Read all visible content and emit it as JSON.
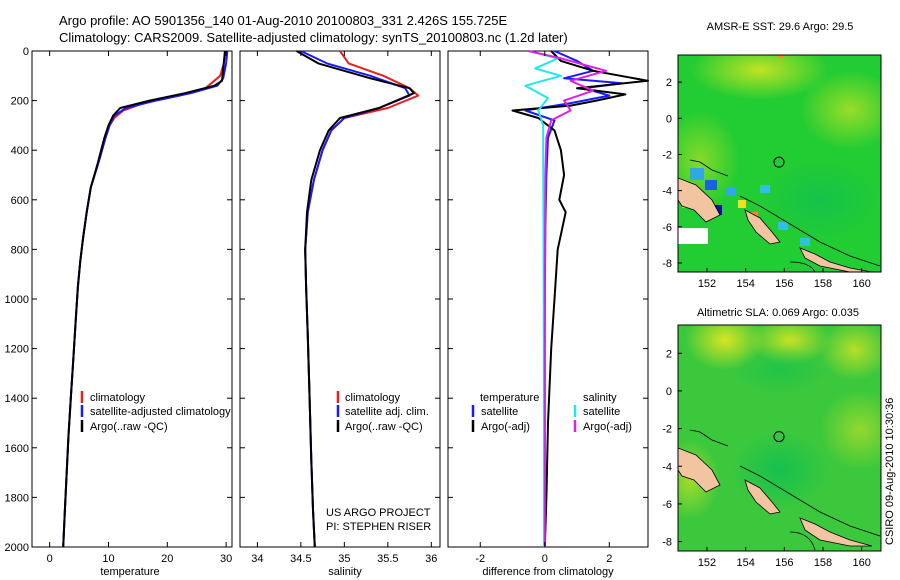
{
  "header": {
    "title_line1": "Argo profile: AO 5901356_140 01-Aug-2010 20100803_331 2.426S 155.725E",
    "title_line2": "Climatology: CARS2009. Satellite-adjusted climatology: synTS_20100803.nc (1.2d later)"
  },
  "colors": {
    "climatology": "#e82020",
    "satellite": "#1a1aff",
    "argo": "#000000",
    "sat_salinity": "#20e8e8",
    "argo_salinity": "#e020e0"
  },
  "chart_data": [
    {
      "id": "temperature",
      "type": "line",
      "xlabel": "temperature",
      "ylabel": "",
      "xlim": [
        -3,
        31
      ],
      "ylim": [
        2000,
        0
      ],
      "xticks": [
        0,
        10,
        20,
        30
      ],
      "yticks": [
        0,
        200,
        400,
        600,
        800,
        1000,
        1200,
        1400,
        1600,
        1800,
        2000
      ],
      "legend": [
        "climatology",
        "satellite-adjusted climatology",
        "Argo(..raw -QC)"
      ],
      "series": [
        {
          "name": "climatology",
          "color": "#e82020",
          "x": [
            29.9,
            29.6,
            29.0,
            26.5,
            22.0,
            16.0,
            12.5,
            11.0,
            10.2,
            9.5,
            8.3,
            7.0,
            6.3,
            5.7,
            5.2,
            4.8,
            4.4,
            4.0,
            3.6,
            3.2,
            2.9,
            2.6,
            2.3
          ],
          "y": [
            0,
            50,
            100,
            150,
            180,
            210,
            240,
            270,
            300,
            350,
            450,
            550,
            650,
            750,
            850,
            950,
            1100,
            1250,
            1400,
            1550,
            1700,
            1850,
            2000
          ]
        },
        {
          "name": "satellite",
          "color": "#1a1aff",
          "x": [
            30.2,
            30.0,
            29.5,
            28.5,
            24.0,
            18.0,
            13.0,
            11.0,
            10.2,
            9.5,
            8.3,
            7.0,
            6.3,
            5.7,
            5.2,
            4.8,
            4.4,
            4.0,
            3.6,
            3.2,
            2.9,
            2.6,
            2.3
          ],
          "y": [
            0,
            50,
            110,
            140,
            170,
            200,
            230,
            260,
            300,
            350,
            450,
            550,
            650,
            750,
            850,
            950,
            1100,
            1250,
            1400,
            1550,
            1700,
            1850,
            2000
          ]
        },
        {
          "name": "Argo",
          "color": "#000000",
          "x": [
            29.8,
            29.6,
            29.3,
            28.0,
            23.0,
            17.0,
            12.0,
            10.8,
            10.0,
            9.3,
            8.2,
            7.0,
            6.3,
            5.7,
            5.2,
            4.8,
            4.4,
            4.0,
            3.6,
            3.2,
            2.9,
            2.6,
            2.3
          ],
          "y": [
            0,
            50,
            120,
            140,
            170,
            200,
            230,
            260,
            300,
            350,
            450,
            550,
            650,
            750,
            850,
            950,
            1100,
            1250,
            1400,
            1550,
            1700,
            1850,
            2000
          ]
        }
      ]
    },
    {
      "id": "salinity",
      "type": "line",
      "xlabel": "salinity",
      "ylabel": "",
      "xlim": [
        33.8,
        36.1
      ],
      "ylim": [
        2000,
        0
      ],
      "xticks": [
        34,
        34.5,
        35,
        35.5,
        36
      ],
      "legend": [
        "climatology",
        "satellite adj. clim.",
        "Argo(..raw -QC)"
      ],
      "credit_lines": [
        "US ARGO PROJECT",
        "PI: STEPHEN RISER"
      ],
      "series": [
        {
          "name": "climatology",
          "color": "#e82020",
          "x": [
            34.95,
            35.05,
            35.45,
            35.75,
            35.85,
            35.5,
            35.0,
            34.85,
            34.75,
            34.65,
            34.58,
            34.55,
            34.56,
            34.58,
            34.6,
            34.62,
            34.64,
            34.66
          ],
          "y": [
            0,
            50,
            100,
            150,
            180,
            230,
            270,
            320,
            400,
            520,
            650,
            800,
            950,
            1150,
            1400,
            1650,
            1850,
            2000
          ]
        },
        {
          "name": "satellite",
          "color": "#1a1aff",
          "x": [
            34.5,
            34.8,
            35.3,
            35.7,
            35.75,
            35.4,
            35.0,
            34.85,
            34.75,
            34.65,
            34.58,
            34.55,
            34.56,
            34.58,
            34.6,
            34.62,
            34.64,
            34.66
          ],
          "y": [
            0,
            50,
            100,
            150,
            180,
            230,
            270,
            320,
            400,
            520,
            650,
            800,
            950,
            1150,
            1400,
            1650,
            1850,
            2000
          ]
        },
        {
          "name": "Argo",
          "color": "#000000",
          "x": [
            34.45,
            34.7,
            35.3,
            35.75,
            35.8,
            35.4,
            34.95,
            34.82,
            34.72,
            34.62,
            34.57,
            34.55,
            34.56,
            34.58,
            34.6,
            34.62,
            34.64,
            34.66
          ],
          "y": [
            0,
            50,
            110,
            150,
            170,
            230,
            270,
            320,
            400,
            520,
            650,
            800,
            950,
            1150,
            1400,
            1650,
            1850,
            2000
          ]
        }
      ]
    },
    {
      "id": "difference",
      "type": "line",
      "xlabel": "difference from climatology",
      "ylabel": "",
      "xlim": [
        -3,
        3.2
      ],
      "ylim": [
        2000,
        0
      ],
      "xticks": [
        -2,
        0,
        2
      ],
      "legend_temperature": [
        "temperature",
        "satellite",
        "Argo(-adj)"
      ],
      "legend_salinity": [
        "salinity",
        "satellite",
        "Argo(-adj)"
      ],
      "series": [
        {
          "name": "temperature satellite",
          "color": "#1a1aff",
          "x": [
            0.3,
            1.0,
            1.5,
            0.6,
            2.4,
            1.2,
            2.0,
            0.8,
            -0.6,
            0.3,
            0.1,
            0.05,
            0.02,
            0.0,
            0.0,
            0.0,
            0.0
          ],
          "y": [
            0,
            40,
            80,
            110,
            130,
            150,
            180,
            210,
            240,
            280,
            350,
            500,
            700,
            1000,
            1400,
            1800,
            2000
          ]
        },
        {
          "name": "temperature Argo",
          "color": "#000000",
          "x": [
            0.2,
            0.5,
            1.5,
            3.2,
            1.0,
            2.5,
            1.6,
            0.8,
            -1.0,
            -0.2,
            0.3,
            0.5,
            0.6,
            0.45,
            0.65,
            0.4,
            0.3,
            0.2,
            0.1,
            0.05,
            0.0
          ],
          "y": [
            0,
            40,
            80,
            120,
            150,
            175,
            200,
            220,
            240,
            270,
            320,
            400,
            500,
            600,
            650,
            800,
            1000,
            1200,
            1500,
            1800,
            2000
          ]
        },
        {
          "name": "salinity satellite",
          "color": "#20e8e8",
          "x": [
            -0.5,
            0.4,
            -0.3,
            0.5,
            -0.6,
            0.1,
            -0.2,
            -0.05,
            -0.05,
            -0.04,
            -0.03,
            -0.02,
            -0.02
          ],
          "y": [
            0,
            30,
            70,
            100,
            140,
            190,
            240,
            300,
            400,
            700,
            1100,
            1500,
            2000
          ]
        },
        {
          "name": "salinity Argo",
          "color": "#e020e0",
          "x": [
            -0.5,
            0.5,
            1.9,
            0.8,
            1.5,
            0.6,
            0.8,
            0.2,
            0.05,
            0.02,
            0.0,
            0.0,
            0.0
          ],
          "y": [
            0,
            30,
            80,
            120,
            160,
            200,
            240,
            280,
            350,
            500,
            900,
            1400,
            2000
          ]
        }
      ]
    },
    {
      "id": "sst_map",
      "type": "heatmap",
      "title": "AMSR-E SST: 29.6 Argo: 29.5",
      "xlim": [
        150.5,
        161
      ],
      "ylim": [
        -8.5,
        3.5
      ],
      "xticks": [
        152,
        154,
        156,
        158,
        160
      ],
      "yticks": [
        2,
        0,
        -2,
        -4,
        -6,
        -8
      ],
      "marker": {
        "lon": 155.725,
        "lat": -2.426
      }
    },
    {
      "id": "sla_map",
      "type": "heatmap",
      "title": "Altimetric SLA: 0.069 Argo: 0.035",
      "xlim": [
        150.5,
        161
      ],
      "ylim": [
        -8.5,
        3.5
      ],
      "xticks": [
        152,
        154,
        156,
        158,
        160
      ],
      "yticks": [
        2,
        0,
        -2,
        -4,
        -6,
        -8
      ],
      "marker": {
        "lon": 155.725,
        "lat": -2.426
      }
    }
  ],
  "footer": {
    "stamp": "CSIRO 09-Aug-2010 10:30:36"
  }
}
